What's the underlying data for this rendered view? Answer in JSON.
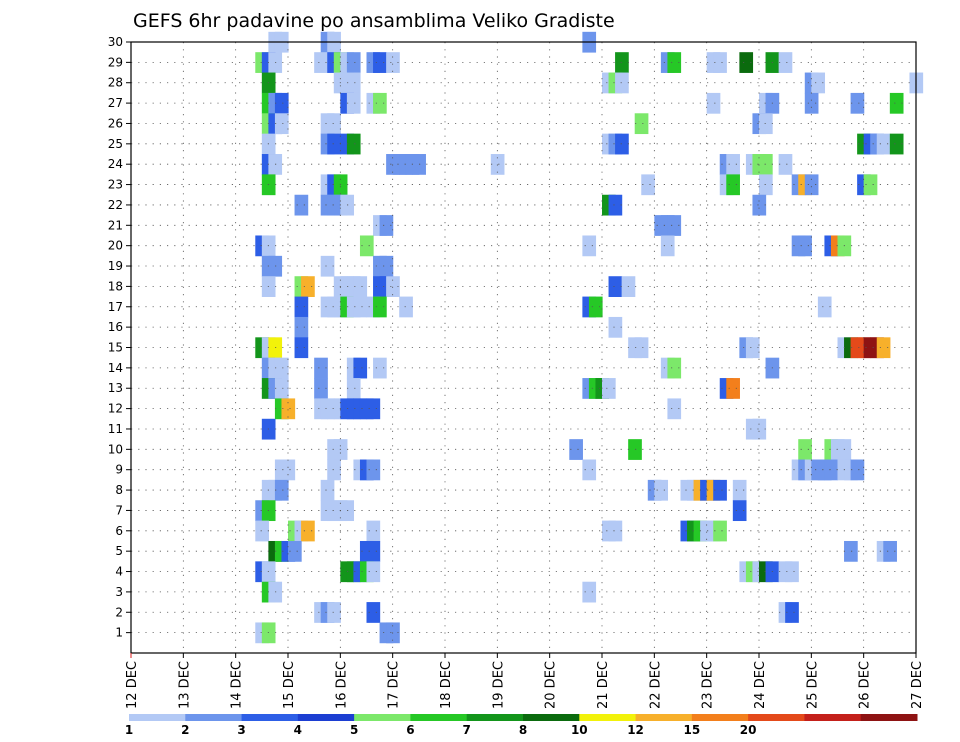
{
  "chart_data": {
    "type": "heatmap",
    "title": "GEFS 6hr padavine po ansamblima Veliko Gradiste",
    "xlabel": "",
    "ylabel": "",
    "x_tick_labels": [
      "12 DEC",
      "13 DEC",
      "14 DEC",
      "15 DEC",
      "16 DEC",
      "17 DEC",
      "18 DEC",
      "19 DEC",
      "20 DEC",
      "21 DEC",
      "22 DEC",
      "23 DEC",
      "24 DEC",
      "25 DEC",
      "26 DEC",
      "27 DEC"
    ],
    "y_tick_labels": [
      "1",
      "2",
      "3",
      "4",
      "5",
      "6",
      "7",
      "8",
      "9",
      "10",
      "11",
      "12",
      "13",
      "14",
      "15",
      "16",
      "17",
      "18",
      "19",
      "20",
      "21",
      "22",
      "23",
      "24",
      "25",
      "26",
      "27",
      "28",
      "29",
      "30"
    ],
    "time_steps_per_day": 4,
    "xlim": [
      0,
      60
    ],
    "ylim": [
      0,
      30
    ],
    "grid": true,
    "colorbar": {
      "labels": [
        "1",
        "2",
        "3",
        "4",
        "5",
        "6",
        "7",
        "8",
        "10",
        "12",
        "15",
        "20"
      ],
      "colors": [
        "#b3c9f5",
        "#6d95ec",
        "#2d5ee6",
        "#1c3ed2",
        "#7ce86a",
        "#26c826",
        "#13951b",
        "#0b6b0e",
        "#f2f20a",
        "#f7b02b",
        "#f37f1c",
        "#e44a1a",
        "#c4201a",
        "#8e1313"
      ]
    },
    "cells": [
      [
        10.5,
        30,
        1
      ],
      [
        11,
        30,
        1
      ],
      [
        14.5,
        30,
        2
      ],
      [
        15,
        30,
        1
      ],
      [
        34.5,
        30,
        2
      ],
      [
        9.5,
        29,
        5
      ],
      [
        10,
        29,
        3
      ],
      [
        10.5,
        29,
        1
      ],
      [
        14,
        29,
        1
      ],
      [
        15,
        29,
        3
      ],
      [
        15.5,
        29,
        5
      ],
      [
        16,
        29,
        1
      ],
      [
        16.5,
        29,
        2
      ],
      [
        18,
        29,
        2
      ],
      [
        18.5,
        29,
        3
      ],
      [
        19.5,
        29,
        1
      ],
      [
        37,
        29,
        7
      ],
      [
        40.5,
        29,
        2
      ],
      [
        41,
        29,
        6
      ],
      [
        44,
        29,
        1
      ],
      [
        44.5,
        29,
        1
      ],
      [
        46.5,
        29,
        8
      ],
      [
        48.5,
        29,
        7
      ],
      [
        49.5,
        29,
        1
      ],
      [
        10,
        28,
        7
      ],
      [
        15.5,
        28,
        1
      ],
      [
        16.5,
        28,
        1
      ],
      [
        36,
        28,
        1
      ],
      [
        36.5,
        28,
        5
      ],
      [
        37,
        28,
        1
      ],
      [
        51.5,
        28,
        2
      ],
      [
        52,
        28,
        1
      ],
      [
        59.5,
        28,
        1
      ],
      [
        10,
        27,
        6
      ],
      [
        10.5,
        27,
        2
      ],
      [
        11,
        27,
        3
      ],
      [
        16,
        27,
        3
      ],
      [
        16.5,
        27,
        1
      ],
      [
        18,
        27,
        1
      ],
      [
        18.5,
        27,
        5
      ],
      [
        44,
        27,
        1
      ],
      [
        48,
        27,
        1
      ],
      [
        48.5,
        27,
        2
      ],
      [
        51.5,
        27,
        2
      ],
      [
        55,
        27,
        2
      ],
      [
        58,
        27,
        6
      ],
      [
        10,
        26,
        5
      ],
      [
        10.5,
        26,
        3
      ],
      [
        11,
        26,
        1
      ],
      [
        14.5,
        26,
        1
      ],
      [
        15,
        26,
        1
      ],
      [
        38.5,
        26,
        5
      ],
      [
        47.5,
        26,
        2
      ],
      [
        48,
        26,
        1
      ],
      [
        10,
        25,
        1
      ],
      [
        14.5,
        25,
        2
      ],
      [
        15,
        25,
        3
      ],
      [
        16,
        25,
        3
      ],
      [
        16.5,
        25,
        7
      ],
      [
        36,
        25,
        1
      ],
      [
        36.5,
        25,
        2
      ],
      [
        37,
        25,
        3
      ],
      [
        55.5,
        25,
        7
      ],
      [
        56,
        25,
        3
      ],
      [
        56.5,
        25,
        2
      ],
      [
        57,
        25,
        1
      ],
      [
        58,
        25,
        7
      ],
      [
        10,
        24,
        3
      ],
      [
        10.5,
        24,
        1
      ],
      [
        19.5,
        24,
        2
      ],
      [
        20,
        24,
        2
      ],
      [
        20.5,
        24,
        2
      ],
      [
        21,
        24,
        2
      ],
      [
        21.5,
        24,
        2
      ],
      [
        27.5,
        24,
        1
      ],
      [
        45,
        24,
        2
      ],
      [
        45.5,
        24,
        1
      ],
      [
        47,
        24,
        1
      ],
      [
        47.5,
        24,
        5
      ],
      [
        48,
        24,
        5
      ],
      [
        49.5,
        24,
        1
      ],
      [
        10,
        23,
        6
      ],
      [
        14.5,
        23,
        1
      ],
      [
        15,
        23,
        3
      ],
      [
        15.5,
        23,
        6
      ],
      [
        39,
        23,
        1
      ],
      [
        45,
        23,
        1
      ],
      [
        45.5,
        23,
        6
      ],
      [
        48,
        23,
        1
      ],
      [
        50.5,
        23,
        2
      ],
      [
        51,
        23,
        10
      ],
      [
        51.5,
        23,
        2
      ],
      [
        55.5,
        23,
        3
      ],
      [
        56,
        23,
        5
      ],
      [
        12.5,
        22,
        2
      ],
      [
        14.5,
        22,
        2
      ],
      [
        15,
        22,
        2
      ],
      [
        15.5,
        22,
        2
      ],
      [
        16,
        22,
        1
      ],
      [
        36,
        22,
        7
      ],
      [
        36.5,
        22,
        3
      ],
      [
        47.5,
        22,
        2
      ],
      [
        18.5,
        21,
        1
      ],
      [
        19,
        21,
        2
      ],
      [
        40,
        21,
        2
      ],
      [
        40.5,
        21,
        2
      ],
      [
        41,
        21,
        2
      ],
      [
        9.5,
        20,
        3
      ],
      [
        10,
        20,
        1
      ],
      [
        17.5,
        20,
        5
      ],
      [
        34.5,
        20,
        1
      ],
      [
        40.5,
        20,
        1
      ],
      [
        50.5,
        20,
        2
      ],
      [
        51,
        20,
        2
      ],
      [
        53,
        20,
        3
      ],
      [
        53.5,
        20,
        11
      ],
      [
        54,
        20,
        5
      ],
      [
        10,
        19,
        2
      ],
      [
        10.5,
        19,
        2
      ],
      [
        14.5,
        19,
        1
      ],
      [
        18.5,
        19,
        2
      ],
      [
        19,
        19,
        2
      ],
      [
        10,
        18,
        1
      ],
      [
        12.5,
        18,
        5
      ],
      [
        13,
        18,
        10
      ],
      [
        15.5,
        18,
        1
      ],
      [
        16,
        18,
        1
      ],
      [
        16.5,
        18,
        1
      ],
      [
        17,
        18,
        1
      ],
      [
        18.5,
        18,
        3
      ],
      [
        19,
        18,
        3
      ],
      [
        19.5,
        18,
        1
      ],
      [
        36.5,
        18,
        3
      ],
      [
        37.5,
        18,
        1
      ],
      [
        12.5,
        17,
        3
      ],
      [
        14.5,
        17,
        1
      ],
      [
        15,
        17,
        1
      ],
      [
        15.5,
        17,
        1
      ],
      [
        16,
        17,
        6
      ],
      [
        16.5,
        17,
        1
      ],
      [
        17,
        17,
        1
      ],
      [
        18,
        17,
        1
      ],
      [
        18.5,
        17,
        6
      ],
      [
        20.5,
        17,
        1
      ],
      [
        34.5,
        17,
        3
      ],
      [
        35,
        17,
        6
      ],
      [
        52.5,
        17,
        1
      ],
      [
        12.5,
        16,
        2
      ],
      [
        36.5,
        16,
        1
      ],
      [
        9.5,
        15,
        7
      ],
      [
        10,
        15,
        1
      ],
      [
        10.5,
        15,
        9
      ],
      [
        12.5,
        15,
        3
      ],
      [
        38,
        15,
        1
      ],
      [
        38.5,
        15,
        1
      ],
      [
        46.5,
        15,
        2
      ],
      [
        47,
        15,
        1
      ],
      [
        54,
        15,
        1
      ],
      [
        54.5,
        15,
        8
      ],
      [
        55,
        15,
        12
      ],
      [
        55.5,
        15,
        12
      ],
      [
        56,
        15,
        14
      ],
      [
        56.5,
        15,
        14
      ],
      [
        57,
        15,
        10
      ],
      [
        10,
        14,
        2
      ],
      [
        10.5,
        14,
        1
      ],
      [
        11,
        14,
        1
      ],
      [
        14,
        14,
        2
      ],
      [
        16.5,
        14,
        1
      ],
      [
        17,
        14,
        3
      ],
      [
        18.5,
        14,
        1
      ],
      [
        40.5,
        14,
        1
      ],
      [
        41,
        14,
        5
      ],
      [
        48.5,
        14,
        2
      ],
      [
        10,
        13,
        7
      ],
      [
        10.5,
        13,
        2
      ],
      [
        11,
        13,
        1
      ],
      [
        14,
        13,
        2
      ],
      [
        16.5,
        13,
        1
      ],
      [
        34.5,
        13,
        2
      ],
      [
        35,
        13,
        6
      ],
      [
        35.5,
        13,
        7
      ],
      [
        36,
        13,
        1
      ],
      [
        45,
        13,
        3
      ],
      [
        45.5,
        13,
        11
      ],
      [
        11,
        12,
        6
      ],
      [
        11.5,
        12,
        10
      ],
      [
        14,
        12,
        1
      ],
      [
        14.5,
        12,
        1
      ],
      [
        15,
        12,
        1
      ],
      [
        15.5,
        12,
        1
      ],
      [
        16,
        12,
        3
      ],
      [
        16.5,
        12,
        3
      ],
      [
        17,
        12,
        3
      ],
      [
        17.5,
        12,
        3
      ],
      [
        18,
        12,
        3
      ],
      [
        41,
        12,
        1
      ],
      [
        10,
        11,
        3
      ],
      [
        47,
        11,
        1
      ],
      [
        47.5,
        11,
        1
      ],
      [
        15,
        10,
        1
      ],
      [
        15.5,
        10,
        1
      ],
      [
        33.5,
        10,
        2
      ],
      [
        38,
        10,
        6
      ],
      [
        51,
        10,
        5
      ],
      [
        53,
        10,
        5
      ],
      [
        53.5,
        10,
        1
      ],
      [
        54,
        10,
        1
      ],
      [
        11,
        9,
        1
      ],
      [
        11.5,
        9,
        1
      ],
      [
        15,
        9,
        1
      ],
      [
        17,
        9,
        1
      ],
      [
        17.5,
        9,
        3
      ],
      [
        18,
        9,
        2
      ],
      [
        34.5,
        9,
        1
      ],
      [
        50.5,
        9,
        1
      ],
      [
        51,
        9,
        2
      ],
      [
        51.5,
        9,
        1
      ],
      [
        52,
        9,
        2
      ],
      [
        52.5,
        9,
        2
      ],
      [
        53,
        9,
        2
      ],
      [
        54,
        9,
        1
      ],
      [
        54.5,
        9,
        1
      ],
      [
        55,
        9,
        2
      ],
      [
        10,
        8,
        1
      ],
      [
        10.5,
        8,
        1
      ],
      [
        11,
        8,
        2
      ],
      [
        14.5,
        8,
        1
      ],
      [
        39.5,
        8,
        2
      ],
      [
        40,
        8,
        1
      ],
      [
        42,
        8,
        1
      ],
      [
        42.5,
        8,
        1
      ],
      [
        43,
        8,
        10
      ],
      [
        43.5,
        8,
        3
      ],
      [
        44,
        8,
        10
      ],
      [
        44.5,
        8,
        3
      ],
      [
        46,
        8,
        1
      ],
      [
        9.5,
        7,
        2
      ],
      [
        10,
        7,
        6
      ],
      [
        14.5,
        7,
        1
      ],
      [
        15,
        7,
        1
      ],
      [
        15.5,
        7,
        1
      ],
      [
        16,
        7,
        1
      ],
      [
        46,
        7,
        3
      ],
      [
        9.5,
        6,
        1
      ],
      [
        12,
        6,
        5
      ],
      [
        12.5,
        6,
        1
      ],
      [
        13,
        6,
        10
      ],
      [
        18,
        6,
        1
      ],
      [
        36,
        6,
        1
      ],
      [
        36.5,
        6,
        1
      ],
      [
        42,
        6,
        3
      ],
      [
        42.5,
        6,
        7
      ],
      [
        43,
        6,
        6
      ],
      [
        43.5,
        6,
        1
      ],
      [
        44,
        6,
        1
      ],
      [
        44.5,
        6,
        5
      ],
      [
        10.5,
        5,
        8
      ],
      [
        11,
        5,
        6
      ],
      [
        11.5,
        5,
        3
      ],
      [
        12,
        5,
        2
      ],
      [
        17.5,
        5,
        3
      ],
      [
        18,
        5,
        3
      ],
      [
        54.5,
        5,
        2
      ],
      [
        57,
        5,
        1
      ],
      [
        57.5,
        5,
        2
      ],
      [
        9.5,
        4,
        3
      ],
      [
        10,
        4,
        1
      ],
      [
        16,
        4,
        7
      ],
      [
        16.5,
        4,
        7
      ],
      [
        17,
        4,
        3
      ],
      [
        17.5,
        4,
        6
      ],
      [
        18,
        4,
        1
      ],
      [
        46.5,
        4,
        1
      ],
      [
        47,
        4,
        5
      ],
      [
        47.5,
        4,
        1
      ],
      [
        48,
        4,
        8
      ],
      [
        48.5,
        4,
        3
      ],
      [
        49.5,
        4,
        1
      ],
      [
        50,
        4,
        1
      ],
      [
        10,
        3,
        6
      ],
      [
        10.5,
        3,
        1
      ],
      [
        34.5,
        3,
        1
      ],
      [
        14,
        2,
        1
      ],
      [
        14.5,
        2,
        2
      ],
      [
        15,
        2,
        1
      ],
      [
        18,
        2,
        3
      ],
      [
        49.5,
        2,
        1
      ],
      [
        50,
        2,
        3
      ],
      [
        9.5,
        1,
        1
      ],
      [
        10,
        1,
        5
      ],
      [
        19,
        1,
        2
      ],
      [
        19.5,
        1,
        2
      ]
    ]
  }
}
